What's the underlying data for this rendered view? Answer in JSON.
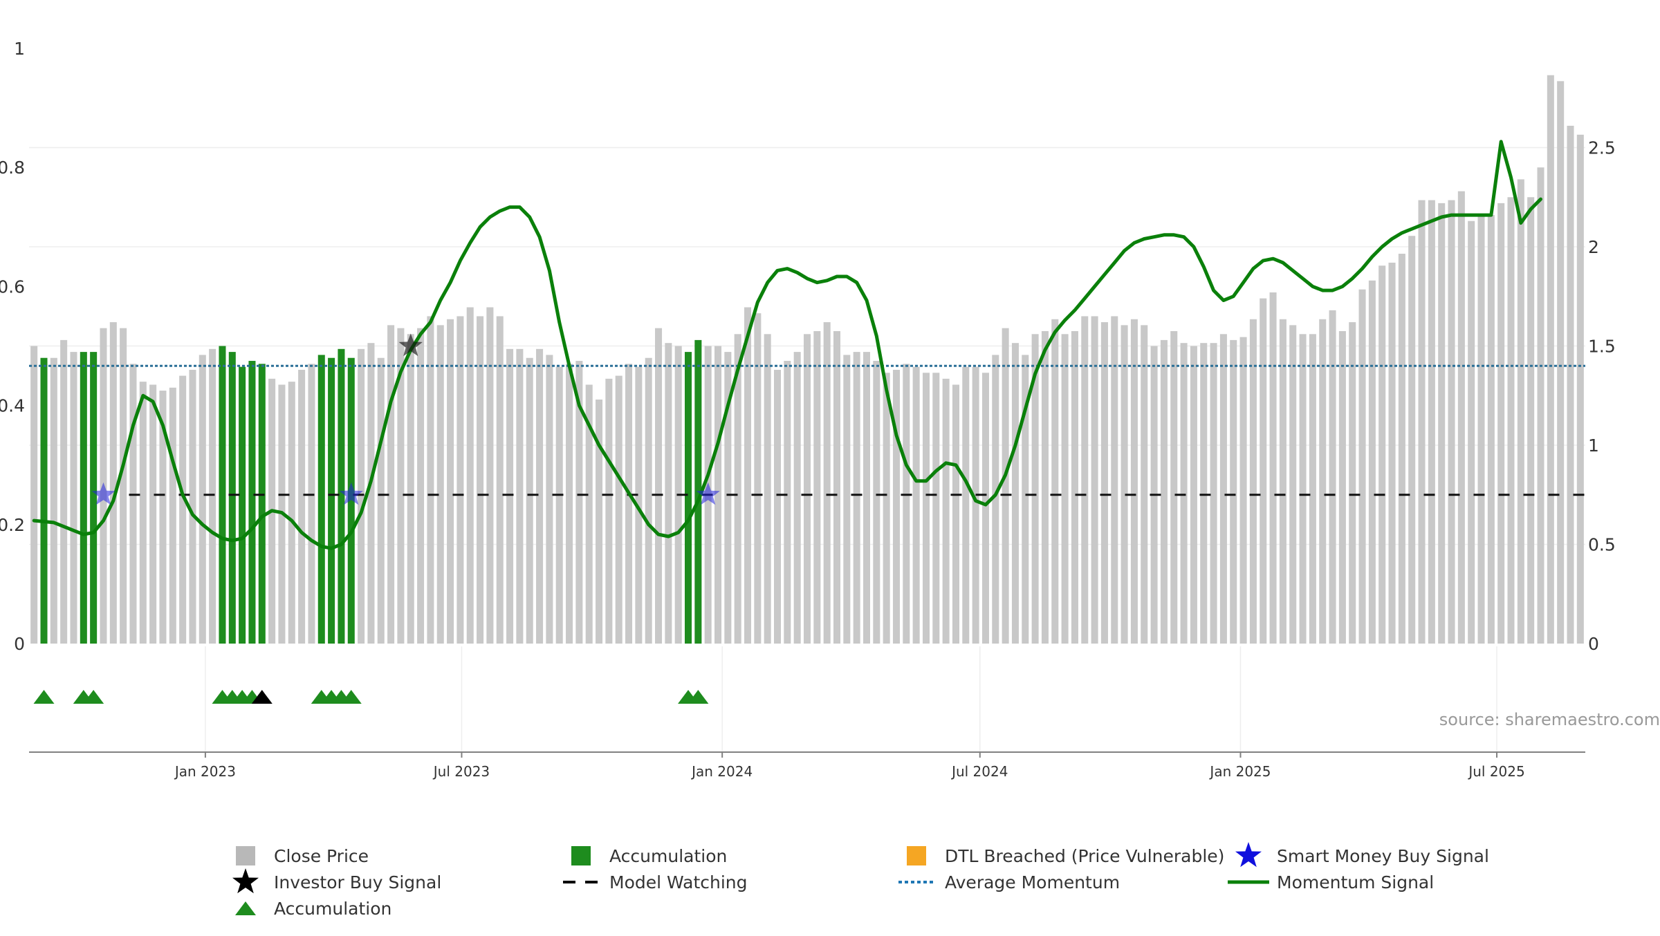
{
  "chart_data": {
    "type": "bar",
    "left_axis": {
      "ylim": [
        0,
        1
      ],
      "ticks": [
        0,
        0.2,
        0.4,
        0.6,
        0.8,
        1
      ],
      "tick_labels": [
        "0",
        "0.2",
        "0.4",
        "0.6",
        "0.8",
        "1"
      ]
    },
    "right_axis": {
      "ylim": [
        0,
        3.0
      ],
      "ticks": [
        0,
        0.5,
        1,
        1.5,
        2,
        2.5
      ],
      "tick_labels": [
        "0",
        "0.5",
        "1",
        "1.5",
        "2",
        "2.5"
      ]
    },
    "x_axis": {
      "type": "date",
      "range": [
        "2022-09-01",
        "2025-09-30"
      ],
      "ticks": [
        {
          "date": "2023-01-01",
          "label": "Jan 2023"
        },
        {
          "date": "2023-07-01",
          "label": "Jul 2023"
        },
        {
          "date": "2024-01-01",
          "label": "Jan 2024"
        },
        {
          "date": "2024-07-01",
          "label": "Jul 2024"
        },
        {
          "date": "2025-01-01",
          "label": "Jan 2025"
        },
        {
          "date": "2025-07-01",
          "label": "Jul 2025"
        }
      ]
    },
    "grid": true,
    "source_note": "source: sharemaestro.com",
    "close_price": {
      "name": "Close Price",
      "color": "#c8c8c8",
      "start_date": "2022-09-02",
      "interval": "weekly",
      "values": [
        0.5,
        0.48,
        0.48,
        0.51,
        0.49,
        0.49,
        0.49,
        0.53,
        0.54,
        0.53,
        0.47,
        0.44,
        0.435,
        0.425,
        0.43,
        0.45,
        0.46,
        0.485,
        0.495,
        0.5,
        0.49,
        0.465,
        0.475,
        0.47,
        0.445,
        0.435,
        0.44,
        0.46,
        0.47,
        0.485,
        0.48,
        0.495,
        0.48,
        0.495,
        0.505,
        0.48,
        0.535,
        0.53,
        0.52,
        0.53,
        0.55,
        0.535,
        0.545,
        0.55,
        0.565,
        0.55,
        0.565,
        0.55,
        0.495,
        0.495,
        0.48,
        0.495,
        0.485,
        0.465,
        0.47,
        0.475,
        0.435,
        0.41,
        0.445,
        0.45,
        0.47,
        0.465,
        0.48,
        0.53,
        0.505,
        0.5,
        0.49,
        0.51,
        0.5,
        0.5,
        0.49,
        0.52,
        0.565,
        0.555,
        0.52,
        0.46,
        0.475,
        0.49,
        0.52,
        0.525,
        0.54,
        0.525,
        0.485,
        0.49,
        0.49,
        0.475,
        0.455,
        0.46,
        0.47,
        0.465,
        0.455,
        0.455,
        0.445,
        0.435,
        0.465,
        0.465,
        0.455,
        0.485,
        0.53,
        0.505,
        0.485,
        0.52,
        0.525,
        0.545,
        0.52,
        0.525,
        0.55,
        0.55,
        0.54,
        0.55,
        0.535,
        0.545,
        0.535,
        0.5,
        0.51,
        0.525,
        0.505,
        0.5,
        0.505,
        0.505,
        0.52,
        0.51,
        0.515,
        0.545,
        0.58,
        0.59,
        0.545,
        0.535,
        0.52,
        0.52,
        0.545,
        0.56,
        0.525,
        0.54,
        0.595,
        0.61,
        0.635,
        0.64,
        0.655,
        0.685,
        0.745,
        0.745,
        0.74,
        0.745,
        0.76,
        0.71,
        0.72,
        0.72,
        0.74,
        0.75,
        0.78,
        0.75,
        0.8,
        0.955,
        0.945,
        0.87,
        0.855
      ]
    },
    "accumulation_bars": {
      "name": "Accumulation",
      "color": "#1e8c1e",
      "indices": [
        1,
        5,
        6,
        19,
        20,
        21,
        22,
        23,
        29,
        30,
        31,
        32,
        66,
        67
      ]
    },
    "momentum_signal": {
      "name": "Momentum Signal",
      "color": "#0a800a",
      "axis": "right",
      "points": [
        [
          0,
          0.62
        ],
        [
          2,
          0.61
        ],
        [
          4,
          0.57
        ],
        [
          5,
          0.55
        ],
        [
          6,
          0.56
        ],
        [
          7,
          0.62
        ],
        [
          8,
          0.72
        ],
        [
          9,
          0.9
        ],
        [
          10,
          1.1
        ],
        [
          11,
          1.25
        ],
        [
          12,
          1.22
        ],
        [
          13,
          1.1
        ],
        [
          14,
          0.92
        ],
        [
          15,
          0.75
        ],
        [
          16,
          0.65
        ],
        [
          17,
          0.6
        ],
        [
          18,
          0.56
        ],
        [
          19,
          0.53
        ],
        [
          20,
          0.52
        ],
        [
          21,
          0.53
        ],
        [
          22,
          0.58
        ],
        [
          23,
          0.64
        ],
        [
          24,
          0.67
        ],
        [
          25,
          0.66
        ],
        [
          26,
          0.62
        ],
        [
          27,
          0.56
        ],
        [
          28,
          0.52
        ],
        [
          29,
          0.49
        ],
        [
          30,
          0.48
        ],
        [
          31,
          0.5
        ],
        [
          32,
          0.56
        ],
        [
          33,
          0.66
        ],
        [
          34,
          0.82
        ],
        [
          35,
          1.02
        ],
        [
          36,
          1.22
        ],
        [
          37,
          1.37
        ],
        [
          38,
          1.48
        ],
        [
          39,
          1.56
        ],
        [
          40,
          1.62
        ],
        [
          41,
          1.73
        ],
        [
          42,
          1.82
        ],
        [
          43,
          1.93
        ],
        [
          44,
          2.02
        ],
        [
          45,
          2.1
        ],
        [
          46,
          2.15
        ],
        [
          47,
          2.18
        ],
        [
          48,
          2.2
        ],
        [
          49,
          2.2
        ],
        [
          50,
          2.15
        ],
        [
          51,
          2.05
        ],
        [
          52,
          1.88
        ],
        [
          53,
          1.62
        ],
        [
          54,
          1.4
        ],
        [
          55,
          1.2
        ],
        [
          56,
          1.1
        ],
        [
          57,
          1.0
        ],
        [
          58,
          0.92
        ],
        [
          59,
          0.84
        ],
        [
          60,
          0.76
        ],
        [
          61,
          0.68
        ],
        [
          62,
          0.6
        ],
        [
          63,
          0.55
        ],
        [
          64,
          0.54
        ],
        [
          65,
          0.56
        ],
        [
          66,
          0.62
        ],
        [
          67,
          0.72
        ],
        [
          68,
          0.85
        ],
        [
          69,
          1.01
        ],
        [
          70,
          1.2
        ],
        [
          71,
          1.38
        ],
        [
          72,
          1.55
        ],
        [
          73,
          1.72
        ],
        [
          74,
          1.82
        ],
        [
          75,
          1.88
        ],
        [
          76,
          1.89
        ],
        [
          77,
          1.87
        ],
        [
          78,
          1.84
        ],
        [
          79,
          1.82
        ],
        [
          80,
          1.83
        ],
        [
          81,
          1.85
        ],
        [
          82,
          1.85
        ],
        [
          83,
          1.82
        ],
        [
          84,
          1.73
        ],
        [
          85,
          1.55
        ],
        [
          86,
          1.28
        ],
        [
          87,
          1.05
        ],
        [
          88,
          0.9
        ],
        [
          89,
          0.82
        ],
        [
          90,
          0.82
        ],
        [
          91,
          0.87
        ],
        [
          92,
          0.91
        ],
        [
          93,
          0.9
        ],
        [
          94,
          0.82
        ],
        [
          95,
          0.72
        ],
        [
          96,
          0.7
        ],
        [
          97,
          0.75
        ],
        [
          98,
          0.85
        ],
        [
          99,
          1.0
        ],
        [
          100,
          1.18
        ],
        [
          101,
          1.36
        ],
        [
          102,
          1.48
        ],
        [
          103,
          1.57
        ],
        [
          104,
          1.63
        ],
        [
          105,
          1.68
        ],
        [
          106,
          1.74
        ],
        [
          107,
          1.8
        ],
        [
          108,
          1.86
        ],
        [
          109,
          1.92
        ],
        [
          110,
          1.98
        ],
        [
          111,
          2.02
        ],
        [
          112,
          2.04
        ],
        [
          113,
          2.05
        ],
        [
          114,
          2.06
        ],
        [
          115,
          2.06
        ],
        [
          116,
          2.05
        ],
        [
          117,
          2.0
        ],
        [
          118,
          1.9
        ],
        [
          119,
          1.78
        ],
        [
          120,
          1.73
        ],
        [
          121,
          1.75
        ],
        [
          122,
          1.82
        ],
        [
          123,
          1.89
        ],
        [
          124,
          1.93
        ],
        [
          125,
          1.94
        ],
        [
          126,
          1.92
        ],
        [
          127,
          1.88
        ],
        [
          128,
          1.84
        ],
        [
          129,
          1.8
        ],
        [
          130,
          1.78
        ],
        [
          131,
          1.78
        ],
        [
          132,
          1.8
        ],
        [
          133,
          1.84
        ],
        [
          134,
          1.89
        ],
        [
          135,
          1.95
        ],
        [
          136,
          2.0
        ],
        [
          137,
          2.04
        ],
        [
          138,
          2.07
        ],
        [
          139,
          2.09
        ],
        [
          140,
          2.11
        ],
        [
          141,
          2.13
        ],
        [
          142,
          2.15
        ],
        [
          143,
          2.16
        ],
        [
          144,
          2.16
        ],
        [
          145,
          2.16
        ],
        [
          146,
          2.16
        ],
        [
          147,
          2.16
        ],
        [
          148,
          2.53
        ],
        [
          149,
          2.35
        ],
        [
          150,
          2.12
        ],
        [
          151,
          2.19
        ],
        [
          152,
          2.24
        ]
      ]
    },
    "average_momentum": {
      "name": "Average Momentum",
      "axis": "right",
      "value": 1.4,
      "color": "#1f77b4"
    },
    "model_watching": {
      "name": "Model Watching",
      "axis": "left",
      "value": 0.25,
      "from_index": 10,
      "color": "#111111"
    },
    "smart_money_buy_signals": {
      "name": "Smart Money Buy Signal",
      "color": "#2222dd",
      "indices": [
        7,
        32,
        68
      ],
      "value": 0.25
    },
    "investor_buy_signals": {
      "name": "Investor Buy Signal",
      "color": "#111111",
      "indices": [
        38
      ],
      "value": 0.5
    },
    "accumulation_markers": {
      "name": "Accumulation",
      "green_indices": [
        1,
        5,
        6,
        19,
        20,
        21,
        22,
        29,
        30,
        31,
        32,
        66,
        67
      ],
      "black_indices": [
        23
      ],
      "green_color": "#1e8c1e",
      "black_color": "#000000"
    },
    "legend": {
      "placement": "bottom",
      "items": [
        {
          "label": "Close Price",
          "symbol": "square",
          "color": "#b8b8b8"
        },
        {
          "label": "Accumulation",
          "symbol": "square",
          "color": "#1e8c1e"
        },
        {
          "label": "DTL Breached (Price Vulnerable)",
          "symbol": "square",
          "color": "#f5a623"
        },
        {
          "label": "Smart Money Buy Signal",
          "symbol": "star",
          "color": "#1010dd"
        },
        {
          "label": "Investor Buy Signal",
          "symbol": "star",
          "color": "#000000"
        },
        {
          "label": "Model Watching",
          "symbol": "dash",
          "color": "#000000"
        },
        {
          "label": "Average Momentum",
          "symbol": "dotted",
          "color": "#1f77b4"
        },
        {
          "label": "Momentum Signal",
          "symbol": "line",
          "color": "#0a800a"
        },
        {
          "label": "Accumulation",
          "symbol": "triangle",
          "color": "#1e8c1e"
        }
      ]
    }
  }
}
